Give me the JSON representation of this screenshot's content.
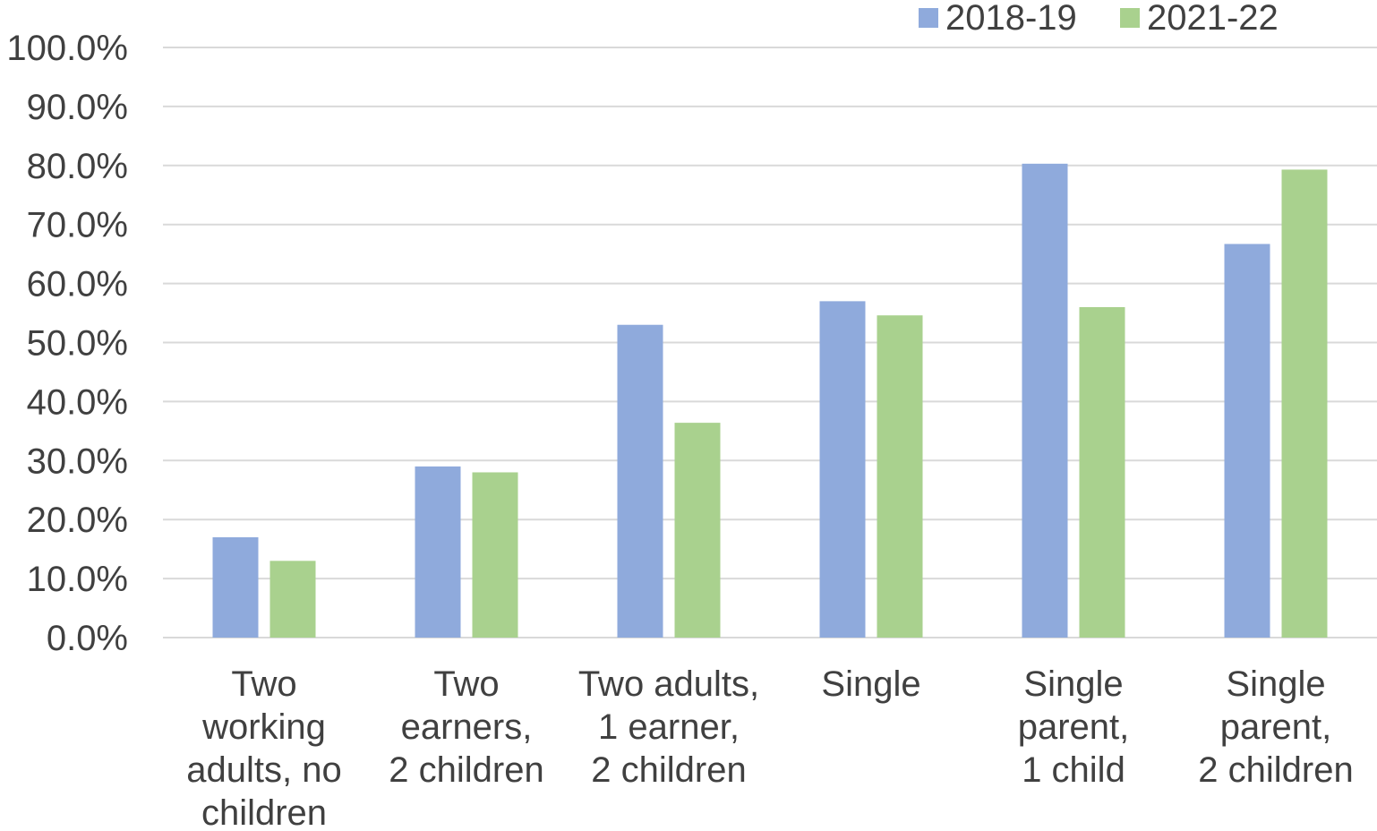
{
  "chart_data": {
    "type": "bar",
    "categories": [
      [
        "Two",
        "working",
        "adults, no",
        "children"
      ],
      [
        "Two",
        "earners,",
        "2 children"
      ],
      [
        "Two adults,",
        "1 earner,",
        "2 children"
      ],
      [
        "Single"
      ],
      [
        "Single",
        "parent,",
        "1 child"
      ],
      [
        "Single",
        "parent,",
        "2 children"
      ]
    ],
    "series": [
      {
        "name": "2018-19",
        "color": "#8faadc",
        "values": [
          17.0,
          29.0,
          53.0,
          57.0,
          80.3,
          66.7
        ]
      },
      {
        "name": "2021-22",
        "color": "#a9d18e",
        "values": [
          13.0,
          28.0,
          36.4,
          54.6,
          56.0,
          79.3
        ]
      }
    ],
    "ylim": [
      0,
      100
    ],
    "yticks": [
      "0.0%",
      "10.0%",
      "20.0%",
      "30.0%",
      "40.0%",
      "50.0%",
      "60.0%",
      "70.0%",
      "80.0%",
      "90.0%",
      "100.0%"
    ],
    "grid": true,
    "legend": "top-right"
  }
}
